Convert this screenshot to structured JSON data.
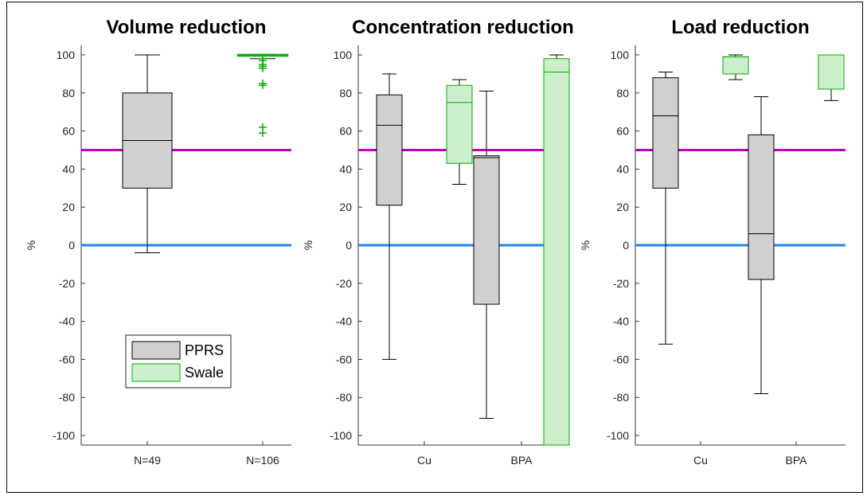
{
  "colors": {
    "ppr_fill": "#d0d0d0",
    "ppr_edge": "#000000",
    "swale_fill": "#cdeecd",
    "swale_edge": "#00b000",
    "threshold_50": "#c000c0",
    "zero_line": "#1f86ec",
    "whisker": "#000000"
  },
  "legend": {
    "entries": [
      "PPRS",
      "Swale"
    ]
  },
  "chart_data": [
    {
      "type": "box",
      "title": "Volume reduction",
      "ylabel": "%",
      "ylim": [
        -105,
        105
      ],
      "yticks": [
        100,
        80,
        60,
        40,
        20,
        0,
        -20,
        -40,
        -60,
        -80,
        -100
      ],
      "categories": [
        "N=49",
        "N=106"
      ],
      "reference_lines": [
        50,
        0
      ],
      "legend": "bottom-left",
      "boxes": [
        {
          "category": "N=49",
          "series": "PPRS",
          "min": -4,
          "q1": 30,
          "median": 55,
          "q3": 80,
          "max": 100,
          "outliers": []
        },
        {
          "category": "N=106",
          "series": "Swale",
          "min": 98,
          "q1": 100,
          "median": 100,
          "q3": 100,
          "max": 100,
          "outliers": [
            98,
            97,
            95,
            94,
            93,
            85,
            84,
            62,
            59
          ]
        }
      ]
    },
    {
      "type": "box",
      "title": "Concentration reduction",
      "ylabel": "%",
      "ylim": [
        -105,
        105
      ],
      "yticks": [
        100,
        80,
        60,
        40,
        20,
        0,
        -20,
        -40,
        -60,
        -80,
        -100
      ],
      "categories": [
        "Cu",
        "BPA"
      ],
      "reference_lines": [
        50,
        0
      ],
      "boxes": [
        {
          "category": "Cu",
          "series": "PPRS",
          "min": -60,
          "q1": 21,
          "median": 63,
          "q3": 79,
          "max": 90,
          "outliers": []
        },
        {
          "category": "Cu",
          "series": "Swale",
          "min": 32,
          "q1": 43,
          "median": 75,
          "q3": 84,
          "max": 87,
          "outliers": []
        },
        {
          "category": "BPA",
          "series": "PPRS",
          "min": -91,
          "q1": -31,
          "median": 46,
          "q3": 47,
          "max": 81,
          "outliers": []
        },
        {
          "category": "BPA",
          "series": "Swale",
          "min": -105,
          "q1": -105,
          "median": 91,
          "q3": 98,
          "max": 100,
          "outliers": []
        }
      ]
    },
    {
      "type": "box",
      "title": "Load reduction",
      "ylabel": "%",
      "ylim": [
        -105,
        105
      ],
      "yticks": [
        100,
        80,
        60,
        40,
        20,
        0,
        -20,
        -40,
        -60,
        -80,
        -100
      ],
      "categories": [
        "Cu",
        "BPA"
      ],
      "reference_lines": [
        50,
        0
      ],
      "boxes": [
        {
          "category": "Cu",
          "series": "PPRS",
          "min": -52,
          "q1": 30,
          "median": 68,
          "q3": 88,
          "max": 91,
          "outliers": []
        },
        {
          "category": "Cu",
          "series": "Swale",
          "min": 87,
          "q1": 90,
          "median": 99,
          "q3": 99,
          "max": 100,
          "outliers": []
        },
        {
          "category": "BPA",
          "series": "PPRS",
          "min": -78,
          "q1": -18,
          "median": 6,
          "q3": 58,
          "max": 78,
          "outliers": []
        },
        {
          "category": "BPA",
          "series": "Swale",
          "min": 76,
          "q1": 82,
          "median": 100,
          "q3": 100,
          "max": 100,
          "outliers": []
        }
      ]
    }
  ]
}
